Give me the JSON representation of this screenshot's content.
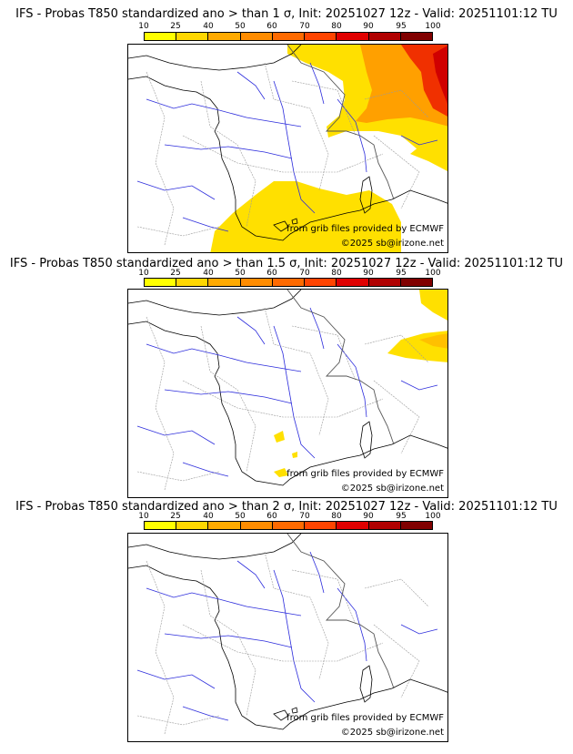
{
  "scale": {
    "ticks": [
      "10",
      "25",
      "40",
      "50",
      "60",
      "70",
      "80",
      "90",
      "95",
      "100"
    ],
    "colors": [
      "#ffff00",
      "#ffd700",
      "#ffaa00",
      "#ff8c00",
      "#ff6a00",
      "#ff4400",
      "#e00000",
      "#b00000",
      "#800000"
    ]
  },
  "panels": [
    {
      "title": "IFS - Probas T850  standardized ano > than 1 σ, Init: 20251027 12z - Valid: 20251101:12 TU",
      "source_note": "from grib files provided by ECMWF",
      "copyright": "©2025 sb@irizone.net"
    },
    {
      "title": "IFS - Probas T850  standardized ano > than 1.5 σ, Init: 20251027 12z - Valid: 20251101:12 TU",
      "source_note": "from grib files provided by ECMWF",
      "copyright": "©2025 sb@irizone.net"
    },
    {
      "title": "IFS - Probas T850  standardized ano > than 2 σ, Init: 20251027 12z - Valid: 20251101:12 TU",
      "source_note": "from grib files provided by ECMWF",
      "copyright": "©2025 sb@irizone.net"
    }
  ]
}
